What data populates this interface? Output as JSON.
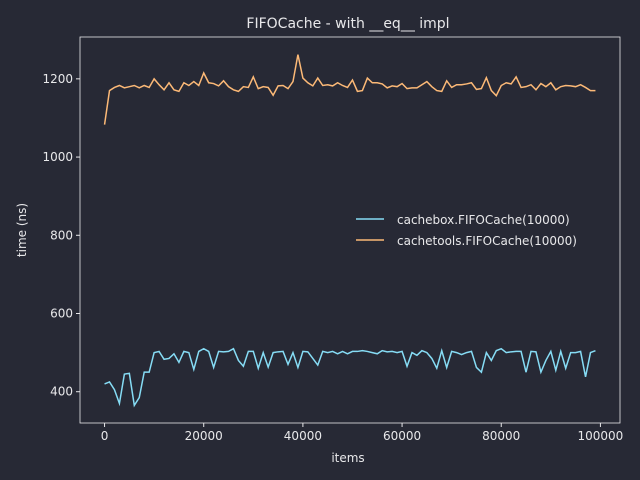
{
  "chart_data": {
    "type": "line",
    "title": "FIFOCache - with __eq__ impl",
    "xlabel": "items",
    "ylabel": "time (ns)",
    "x": [
      0,
      1000,
      2000,
      3000,
      4000,
      5000,
      6000,
      7000,
      8000,
      9000,
      10000,
      11000,
      12000,
      13000,
      14000,
      15000,
      16000,
      17000,
      18000,
      19000,
      20000,
      21000,
      22000,
      23000,
      24000,
      25000,
      26000,
      27000,
      28000,
      29000,
      30000,
      31000,
      32000,
      33000,
      34000,
      35000,
      36000,
      37000,
      38000,
      39000,
      40000,
      41000,
      42000,
      43000,
      44000,
      45000,
      46000,
      47000,
      48000,
      49000,
      50000,
      51000,
      52000,
      53000,
      54000,
      55000,
      56000,
      57000,
      58000,
      59000,
      60000,
      61000,
      62000,
      63000,
      64000,
      65000,
      66000,
      67000,
      68000,
      69000,
      70000,
      71000,
      72000,
      73000,
      74000,
      75000,
      76000,
      77000,
      78000,
      79000,
      80000,
      81000,
      82000,
      83000,
      84000,
      85000,
      86000,
      87000,
      88000,
      89000,
      90000,
      91000,
      92000,
      93000,
      94000,
      95000,
      96000,
      97000,
      98000,
      99000
    ],
    "series": [
      {
        "name": "cachebox.FIFOCache(10000)",
        "color": "#86dcf5",
        "values": [
          420,
          425,
          405,
          370,
          445,
          447,
          365,
          385,
          450,
          450,
          500,
          503,
          483,
          485,
          497,
          475,
          503,
          500,
          457,
          503,
          510,
          503,
          462,
          503,
          502,
          503,
          510,
          480,
          465,
          503,
          503,
          460,
          500,
          463,
          500,
          502,
          503,
          470,
          500,
          462,
          503,
          502,
          485,
          468,
          503,
          500,
          503,
          497,
          503,
          497,
          503,
          503,
          505,
          503,
          500,
          497,
          505,
          502,
          503,
          500,
          503,
          465,
          500,
          493,
          505,
          500,
          485,
          460,
          505,
          462,
          503,
          500,
          495,
          500,
          503,
          462,
          450,
          500,
          480,
          505,
          510,
          500,
          502,
          503,
          503,
          450,
          503,
          502,
          450,
          480,
          503,
          455,
          503,
          460,
          500,
          500,
          503,
          438,
          500,
          505
        ]
      },
      {
        "name": "cachetools.FIFOCache(10000)",
        "color": "#fcb977",
        "values": [
          1083,
          1170,
          1178,
          1183,
          1177,
          1180,
          1183,
          1177,
          1183,
          1178,
          1200,
          1185,
          1172,
          1190,
          1172,
          1168,
          1190,
          1183,
          1193,
          1183,
          1215,
          1190,
          1188,
          1182,
          1195,
          1180,
          1172,
          1168,
          1180,
          1178,
          1205,
          1175,
          1180,
          1178,
          1158,
          1182,
          1183,
          1175,
          1193,
          1262,
          1202,
          1190,
          1182,
          1202,
          1183,
          1185,
          1182,
          1190,
          1183,
          1178,
          1197,
          1168,
          1170,
          1202,
          1190,
          1190,
          1187,
          1177,
          1182,
          1180,
          1188,
          1175,
          1177,
          1177,
          1185,
          1193,
          1180,
          1170,
          1168,
          1195,
          1178,
          1185,
          1185,
          1187,
          1190,
          1173,
          1175,
          1203,
          1170,
          1157,
          1183,
          1190,
          1187,
          1205,
          1178,
          1180,
          1185,
          1172,
          1188,
          1180,
          1190,
          1172,
          1180,
          1183,
          1182,
          1180,
          1185,
          1178,
          1170,
          1170
        ]
      }
    ],
    "xlim": [
      -4950,
      103950
    ],
    "ylim": [
      320,
      1307
    ],
    "xticks": [
      0,
      20000,
      40000,
      60000,
      80000,
      100000
    ],
    "yticks": [
      400,
      600,
      800,
      1000,
      1200
    ],
    "legend": "center right"
  }
}
